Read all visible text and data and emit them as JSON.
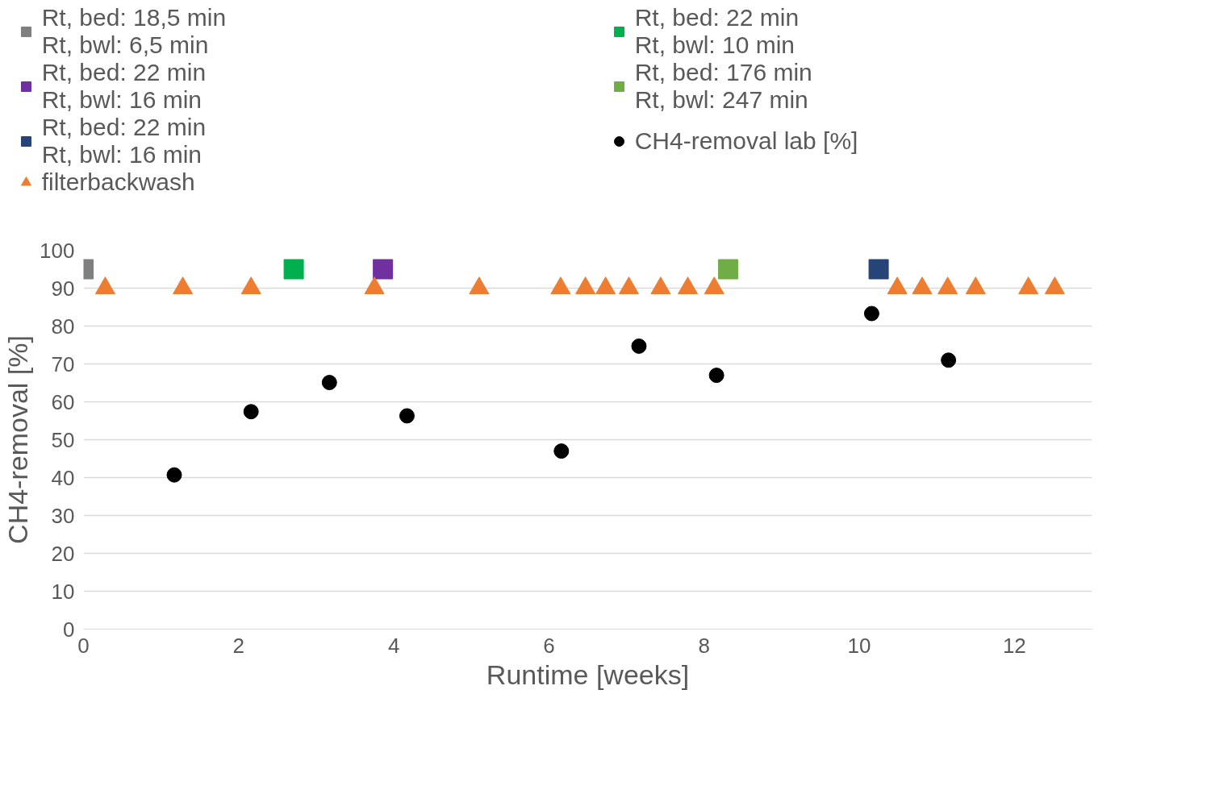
{
  "chart_data": {
    "type": "scatter",
    "xlabel": "Runtime [weeks]",
    "ylabel": "CH4-removal [%]",
    "xlim": [
      0,
      13
    ],
    "xticks": [
      0,
      2,
      4,
      6,
      8,
      10,
      12
    ],
    "ylim": [
      0,
      100
    ],
    "yticks": [
      0,
      10,
      20,
      30,
      40,
      50,
      60,
      70,
      80,
      90,
      100
    ],
    "grid": "y",
    "legend": "top",
    "series": [
      {
        "name": "Rt, bed: 18,5 min\nRt, bwl: 6,5 min",
        "color": "#7f7f7f",
        "marker": "square",
        "x": [
          0
        ],
        "values": [
          95
        ]
      },
      {
        "name": "Rt, bed: 22 min\nRt, bwl: 10 min",
        "color": "#00b050",
        "marker": "square",
        "x": [
          2.71
        ],
        "values": [
          95
        ]
      },
      {
        "name": "Rt, bed: 22 min\nRt, bwl: 16 min",
        "color": "#7030a0",
        "marker": "square",
        "x": [
          3.86
        ],
        "values": [
          95
        ]
      },
      {
        "name": "Rt, bed: 176 min\nRt, bwl: 247 min",
        "color": "#70ad47",
        "marker": "square",
        "x": [
          8.31
        ],
        "values": [
          95
        ]
      },
      {
        "name": "Rt, bed: 22 min\nRt, bwl: 16 min",
        "color": "#264478",
        "marker": "square",
        "x": [
          10.25
        ],
        "values": [
          95
        ]
      },
      {
        "name": "CH4-removal lab [%]",
        "color": "#000000",
        "marker": "circle",
        "x": [
          1.17,
          2.16,
          3.17,
          4.17,
          6.16,
          7.16,
          8.16,
          10.16,
          11.15
        ],
        "values": [
          40.7,
          57.4,
          65.1,
          56.3,
          47.0,
          74.7,
          67.0,
          83.3,
          71.0
        ]
      },
      {
        "name": "filterbackwash",
        "color": "#ed7d31",
        "marker": "triangle",
        "x": [
          0.28,
          1.28,
          2.16,
          3.75,
          5.1,
          6.15,
          6.47,
          6.73,
          7.03,
          7.44,
          7.79,
          8.13,
          10.49,
          10.81,
          11.14,
          11.5,
          12.18,
          12.52
        ],
        "values": [
          90,
          90,
          90,
          90,
          90,
          90,
          90,
          90,
          90,
          90,
          90,
          90,
          90,
          90,
          90,
          90,
          90,
          90
        ]
      }
    ]
  }
}
